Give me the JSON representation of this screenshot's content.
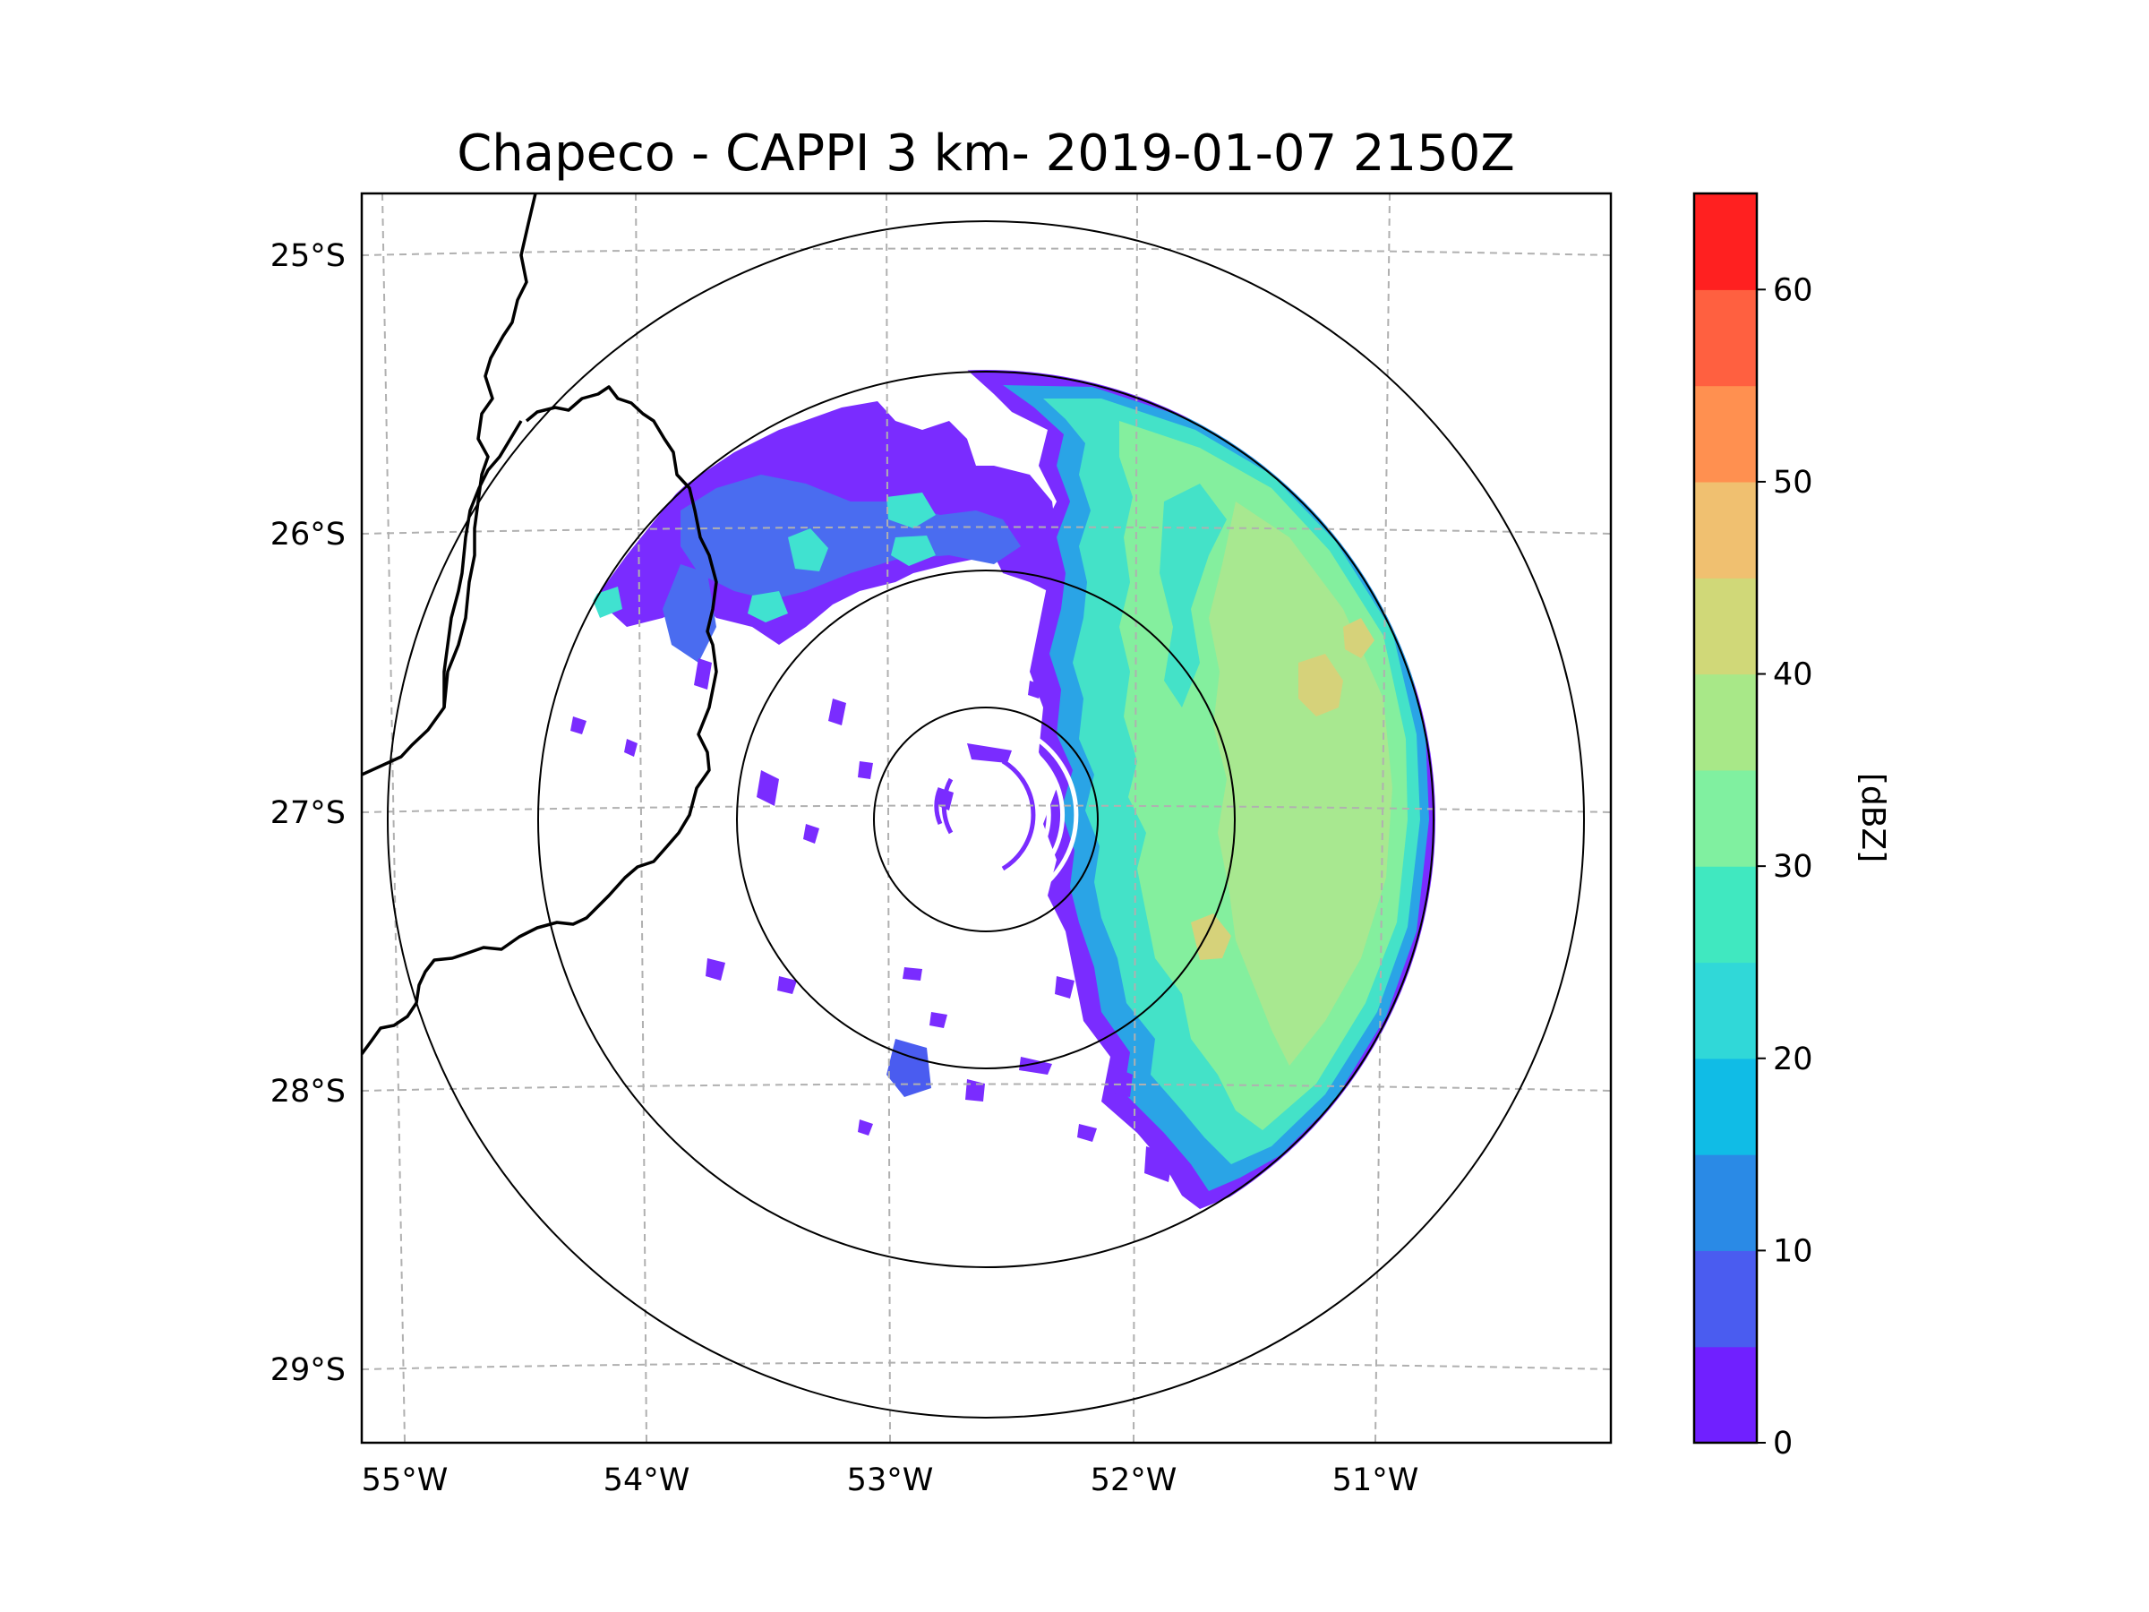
{
  "title": "Chapeco - CAPPI 3 km- 2019-01-07 2150Z",
  "map": {
    "lon_ticks": [
      {
        "value": -55,
        "label": "55°W"
      },
      {
        "value": -54,
        "label": "54°W"
      },
      {
        "value": -53,
        "label": "53°W"
      },
      {
        "value": -52,
        "label": "52°W"
      },
      {
        "value": -51,
        "label": "51°W"
      }
    ],
    "lat_ticks": [
      {
        "value": -25,
        "label": "25°S"
      },
      {
        "value": -26,
        "label": "26°S"
      },
      {
        "value": -27,
        "label": "27°S"
      },
      {
        "value": -28,
        "label": "28°S"
      },
      {
        "value": -29,
        "label": "29°S"
      }
    ],
    "gridline_color": "#b0b0b0",
    "range_ring_color": "#000000",
    "border_color": "#000000"
  },
  "colorbar": {
    "label": "[dBZ]",
    "min": 0,
    "max": 65,
    "ticks": [
      {
        "value": 0,
        "label": "0"
      },
      {
        "value": 10,
        "label": "10"
      },
      {
        "value": 20,
        "label": "20"
      },
      {
        "value": 30,
        "label": "30"
      },
      {
        "value": 40,
        "label": "40"
      },
      {
        "value": 50,
        "label": "50"
      },
      {
        "value": 60,
        "label": "60"
      }
    ],
    "colors": [
      "#7020ff",
      "#4a5cf0",
      "#2a8ae6",
      "#10bce6",
      "#30d8d8",
      "#40e8c0",
      "#80f0a0",
      "#a8e888",
      "#d0d878",
      "#f0c070",
      "#ff9050",
      "#ff6040",
      "#ff2020"
    ]
  }
}
